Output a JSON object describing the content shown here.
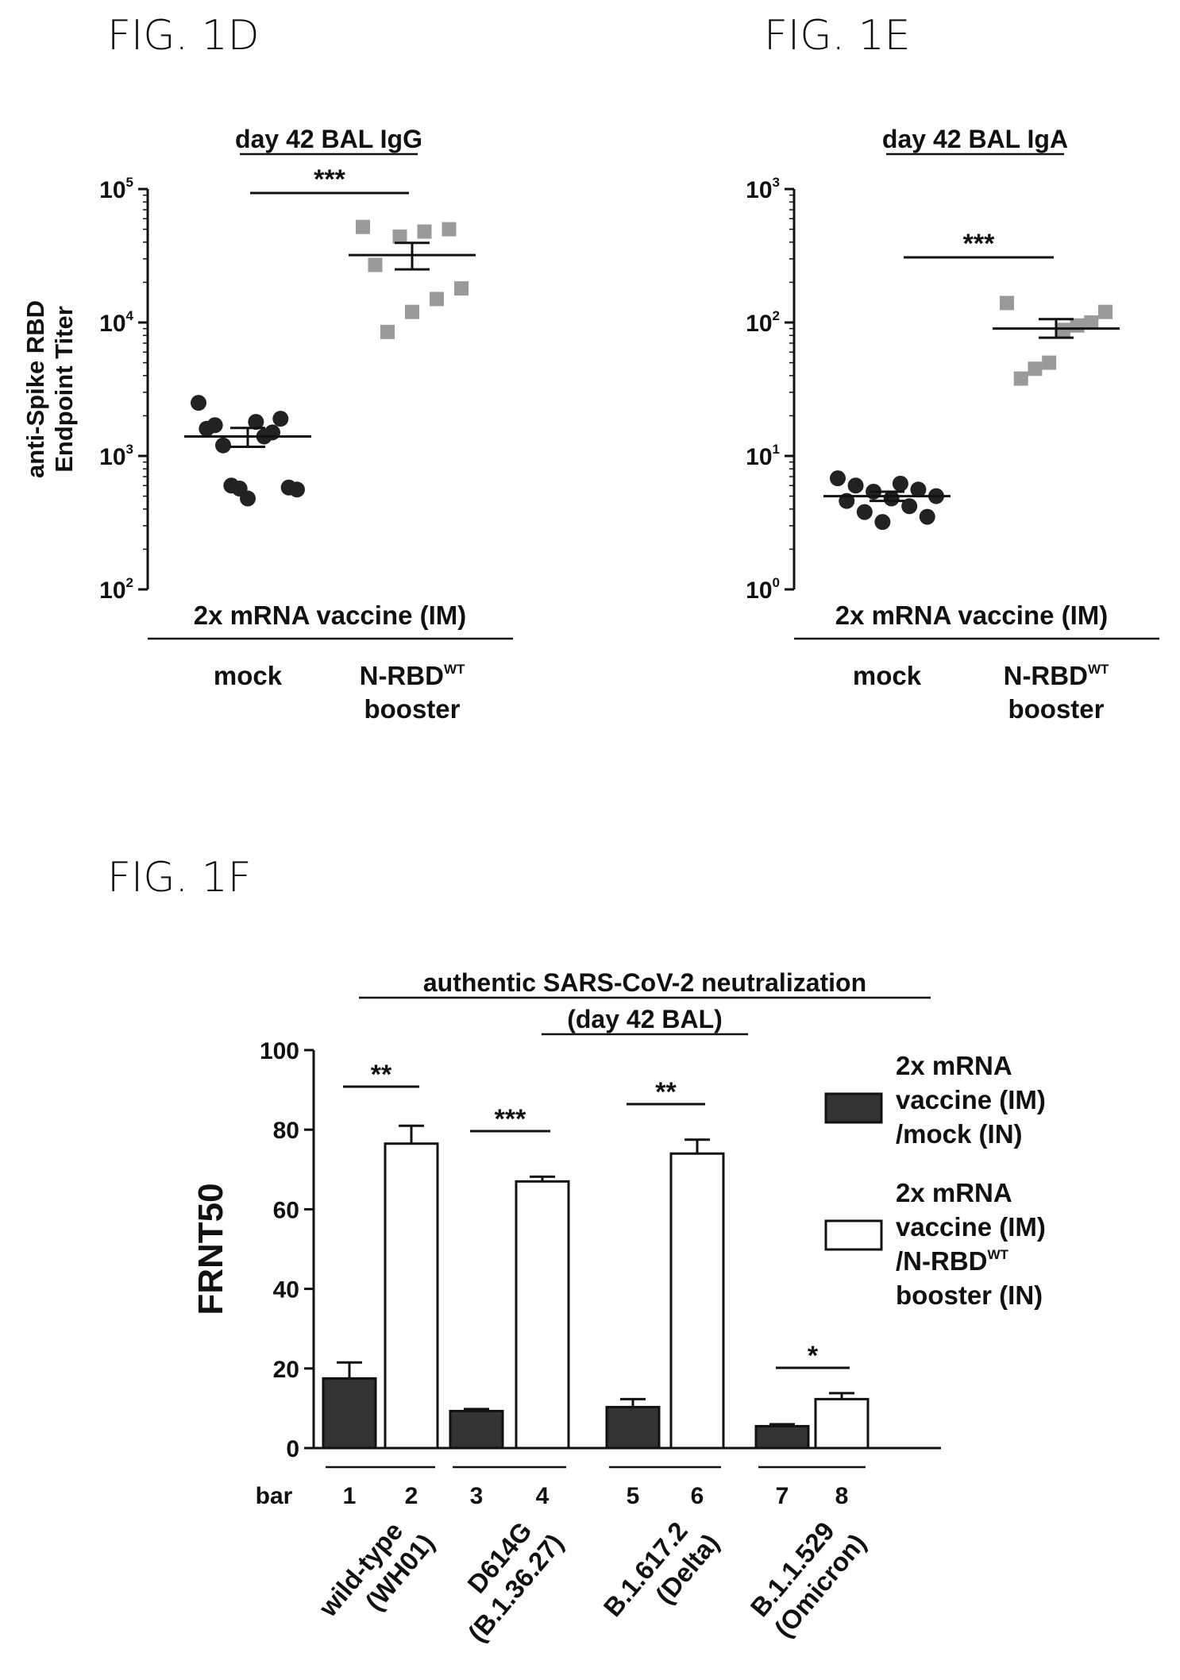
{
  "figures": {
    "d": "FIG. 1D",
    "e": "FIG. 1E",
    "f": "FIG. 1F"
  },
  "chart_data": [
    {
      "type": "scatter",
      "title": "day 42 BAL IgG",
      "ylabel_line1": "anti-Spike RBD",
      "ylabel_line2": "Endpoint Titer",
      "yscale": "log",
      "ylim": [
        100,
        100000
      ],
      "yticks": [
        {
          "base": "10",
          "exp": "2"
        },
        {
          "base": "10",
          "exp": "3"
        },
        {
          "base": "10",
          "exp": "4"
        },
        {
          "base": "10",
          "exp": "5"
        }
      ],
      "group_header": "2x mRNA vaccine (IM)",
      "groups": [
        {
          "label": "mock",
          "label2": "",
          "sup": "",
          "marker": "circle",
          "values": [
            2500,
            1800,
            1600,
            1400,
            1700,
            1500,
            1200,
            1900,
            600,
            580,
            570,
            560,
            480
          ],
          "mean": 1400,
          "sem_low": 1170,
          "sem_high": 1620
        },
        {
          "label": "N-RBD",
          "label2": "booster",
          "sup": "WT",
          "marker": "square",
          "values": [
            52000,
            50000,
            48000,
            44000,
            27000,
            18000,
            15000,
            12000,
            8500
          ],
          "mean": 32000,
          "sem_low": 25000,
          "sem_high": 39500
        }
      ],
      "significance": "***"
    },
    {
      "type": "scatter",
      "title": "day 42 BAL IgA",
      "ylabel_line1": "",
      "ylabel_line2": "",
      "yscale": "log",
      "ylim": [
        1,
        1000
      ],
      "yticks": [
        {
          "base": "10",
          "exp": "0"
        },
        {
          "base": "10",
          "exp": "1"
        },
        {
          "base": "10",
          "exp": "2"
        },
        {
          "base": "10",
          "exp": "3"
        }
      ],
      "group_header": "2x mRNA vaccine (IM)",
      "groups": [
        {
          "label": "mock",
          "label2": "",
          "sup": "",
          "marker": "circle",
          "values": [
            6.8,
            6.2,
            6.0,
            5.6,
            5.4,
            5.0,
            4.8,
            4.6,
            4.2,
            3.8,
            3.5,
            3.2
          ],
          "mean": 5.0,
          "sem_low": 4.6,
          "sem_high": 5.4
        },
        {
          "label": "N-RBD",
          "label2": "booster",
          "sup": "WT",
          "marker": "square",
          "values": [
            140,
            120,
            100,
            95,
            88,
            50,
            45,
            38
          ],
          "mean": 90,
          "sem_low": 77,
          "sem_high": 106
        }
      ],
      "significance": "***"
    },
    {
      "type": "bar",
      "title_line1": "authentic SARS-CoV-2 neutralization",
      "title_line2": "(day 42 BAL)",
      "ylabel": "FRNT50",
      "ylim": [
        0,
        100
      ],
      "yticks": [
        "0",
        "20",
        "40",
        "60",
        "80",
        "100"
      ],
      "bar_row_label": "bar",
      "bars": [
        {
          "num": "1",
          "value": 17.5,
          "err": 4.0,
          "series": 0
        },
        {
          "num": "2",
          "value": 76.5,
          "err": 4.5,
          "series": 1
        },
        {
          "num": "3",
          "value": 9.3,
          "err": 0.5,
          "series": 0
        },
        {
          "num": "4",
          "value": 67.0,
          "err": 1.2,
          "series": 1
        },
        {
          "num": "5",
          "value": 10.3,
          "err": 2.0,
          "series": 0
        },
        {
          "num": "6",
          "value": 74.0,
          "err": 3.5,
          "series": 1
        },
        {
          "num": "7",
          "value": 5.5,
          "err": 0.5,
          "series": 0
        },
        {
          "num": "8",
          "value": 12.3,
          "err": 1.5,
          "series": 1
        }
      ],
      "categories": [
        {
          "line1": "wild-type",
          "line2": "(WH01)"
        },
        {
          "line1": "D614G",
          "line2": "(B.1.36.27)"
        },
        {
          "line1": "B.1.617.2",
          "line2": "(Delta)"
        },
        {
          "line1": "B.1.1.529",
          "line2": "(Omicron)"
        }
      ],
      "significance": [
        "**",
        "***",
        "**",
        "*"
      ],
      "legend": [
        {
          "color": "#333333",
          "lines": [
            "2x mRNA",
            "vaccine (IM)",
            "/mock (IN)"
          ],
          "sup": ""
        },
        {
          "color": "#ffffff",
          "lines": [
            "2x mRNA",
            "vaccine (IM)",
            "/N-RBD",
            "booster (IN)"
          ],
          "sup": "WT"
        }
      ]
    }
  ]
}
